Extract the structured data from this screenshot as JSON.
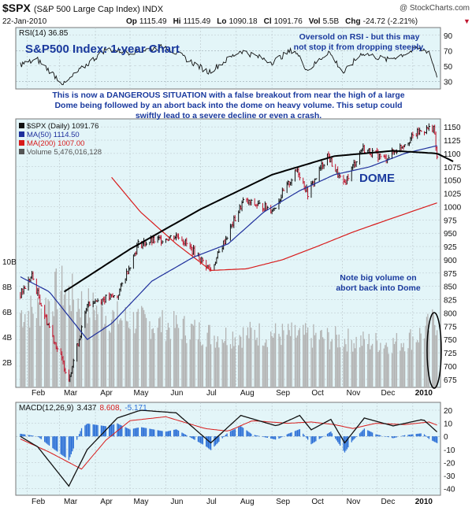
{
  "header": {
    "symbol": "$SPX",
    "name": "(S&P 500 Large Cap Index) INDX",
    "watermark": "@ StockCharts.com",
    "date": "22-Jan-2010",
    "quote": [
      {
        "label": "Op",
        "value": "1115.49"
      },
      {
        "label": "Hi",
        "value": "1115.49"
      },
      {
        "label": "Lo",
        "value": "1090.18"
      },
      {
        "label": "Cl",
        "value": "1091.76"
      },
      {
        "label": "Vol",
        "value": "5.5B"
      },
      {
        "label": "Chg",
        "value": "-24.72 (-2.21%)"
      }
    ],
    "chg_arrow": "▼"
  },
  "colors": {
    "panel_bg": "#e3f5f8",
    "grid": "#b9c4c9",
    "blue_text": "#1a3a9e",
    "price_up": "#111111",
    "price_down": "#c0162e",
    "ma50": "#1e2f9c",
    "ma200": "#d81b1b",
    "volume": "#b3b3b3",
    "histogram": "#2b6fd6"
  },
  "rsi_panel": {
    "legend": "RSI(14) 36.85",
    "annotation": "Oversold on RSI - but this may not stop it from dropping steeply.",
    "annotation_lines": [
      "Oversold on RSI - but this may",
      "not stop it from dropping steeply."
    ],
    "title": "S&P500 Index: 1-year Chart",
    "ticks": [
      "90",
      "70",
      "50",
      "30"
    ]
  },
  "commentary_lines": [
    "This is now a DANGEROUS SITUATION with a false breakout from near the high of a large",
    "Dome being followed by an abort back into the dome on heavy volume. This setup could",
    "swiftly lead to a severe decline or even a crash."
  ],
  "price_panel": {
    "legend": [
      {
        "text": "$SPX (Daily) 1091.76",
        "color": "#111111"
      },
      {
        "text": "MA(50) 1114.50",
        "color": "#1e2f9c"
      },
      {
        "text": "MA(200) 1007.00",
        "color": "#d81b1b"
      },
      {
        "text": "Volume 5,476,016,128",
        "color": "#555555"
      }
    ],
    "dome_label": "DOME",
    "volume_note_lines": [
      "Note big volume on",
      "abort back into Dome"
    ],
    "price_ticks": [
      "1150",
      "1125",
      "1100",
      "1075",
      "1050",
      "1025",
      "1000",
      "975",
      "950",
      "925",
      "900",
      "875",
      "850",
      "825",
      "800",
      "775",
      "750",
      "725",
      "700",
      "675"
    ],
    "volume_ticks": [
      "10B",
      "8B",
      "6B",
      "4B",
      "2B"
    ]
  },
  "macd_panel": {
    "legend_label": "MACD(12,26,9)",
    "macd_value": "3.437",
    "signal_value": "8.608",
    "hist_value": "-5.171",
    "ticks": [
      "20",
      "10",
      "0",
      "-10",
      "-20",
      "-30",
      "-40"
    ]
  },
  "x_axis": {
    "months": [
      "Feb",
      "Mar",
      "Apr",
      "May",
      "Jun",
      "Jul",
      "Aug",
      "Sep",
      "Oct",
      "Nov",
      "Dec",
      "2010"
    ]
  },
  "chart_data": {
    "type": "line",
    "title": "S&P500 Index: 1-year Chart",
    "x_label": "",
    "y_label": "",
    "price_range": [
      660,
      1165
    ],
    "price_points": [
      [
        "2009-01-26",
        835
      ],
      [
        "2009-02-05",
        870
      ],
      [
        "2009-02-17",
        790
      ],
      [
        "2009-03-09",
        677
      ],
      [
        "2009-03-26",
        820
      ],
      [
        "2009-04-20",
        832
      ],
      [
        "2009-05-08",
        929
      ],
      [
        "2009-06-12",
        946
      ],
      [
        "2009-07-10",
        880
      ],
      [
        "2009-08-07",
        1010
      ],
      [
        "2009-09-02",
        995
      ],
      [
        "2009-09-23",
        1070
      ],
      [
        "2009-10-02",
        1025
      ],
      [
        "2009-10-19",
        1097
      ],
      [
        "2009-11-02",
        1040
      ],
      [
        "2009-11-18",
        1110
      ],
      [
        "2009-12-08",
        1090
      ],
      [
        "2010-01-06",
        1140
      ],
      [
        "2010-01-19",
        1150
      ],
      [
        "2010-01-22",
        1091.76
      ]
    ],
    "ma50_points": [
      [
        "2009-01-26",
        868
      ],
      [
        "2009-02-20",
        840
      ],
      [
        "2009-03-25",
        750
      ],
      [
        "2009-04-15",
        780
      ],
      [
        "2009-05-20",
        860
      ],
      [
        "2009-06-25",
        905
      ],
      [
        "2009-07-25",
        930
      ],
      [
        "2009-08-25",
        990
      ],
      [
        "2009-09-25",
        1030
      ],
      [
        "2009-10-25",
        1060
      ],
      [
        "2009-11-25",
        1075
      ],
      [
        "2009-12-25",
        1100
      ],
      [
        "2010-01-22",
        1114.5
      ]
    ],
    "ma200_points": [
      [
        "2009-04-15",
        1055
      ],
      [
        "2009-05-10",
        990
      ],
      [
        "2009-06-10",
        930
      ],
      [
        "2009-07-10",
        880
      ],
      [
        "2009-08-10",
        883
      ],
      [
        "2009-09-10",
        900
      ],
      [
        "2009-10-10",
        925
      ],
      [
        "2009-11-10",
        952
      ],
      [
        "2009-12-10",
        975
      ],
      [
        "2010-01-22",
        1007
      ]
    ],
    "rsi_range": [
      20,
      100
    ],
    "rsi_points": [
      [
        "2009-01-26",
        52
      ],
      [
        "2009-02-10",
        58
      ],
      [
        "2009-03-05",
        26
      ],
      [
        "2009-03-15",
        40
      ],
      [
        "2009-04-10",
        72
      ],
      [
        "2009-05-01",
        68
      ],
      [
        "2009-06-01",
        75
      ],
      [
        "2009-07-08",
        42
      ],
      [
        "2009-08-05",
        70
      ],
      [
        "2009-09-01",
        55
      ],
      [
        "2009-09-20",
        72
      ],
      [
        "2009-10-02",
        44
      ],
      [
        "2009-10-20",
        69
      ],
      [
        "2009-11-02",
        41
      ],
      [
        "2009-11-18",
        67
      ],
      [
        "2009-12-10",
        58
      ],
      [
        "2010-01-05",
        72
      ],
      [
        "2010-01-15",
        69
      ],
      [
        "2010-01-22",
        36.85
      ]
    ],
    "volume_unit": "B",
    "volume_range": [
      0,
      12
    ],
    "volume_points": [
      [
        "2009-01-26",
        6.1
      ],
      [
        "2009-02-15",
        6.5
      ],
      [
        "2009-03-01",
        8.2
      ],
      [
        "2009-03-20",
        6.9
      ],
      [
        "2009-04-15",
        5.8
      ],
      [
        "2009-05-15",
        5.3
      ],
      [
        "2009-06-15",
        4.9
      ],
      [
        "2009-07-15",
        4.2
      ],
      [
        "2009-08-15",
        4.4
      ],
      [
        "2009-09-15",
        4.3
      ],
      [
        "2009-10-15",
        4.1
      ],
      [
        "2009-11-15",
        3.8
      ],
      [
        "2009-12-15",
        3.6
      ],
      [
        "2010-01-05",
        4.2
      ],
      [
        "2010-01-22",
        5.5
      ]
    ],
    "macd_range": [
      -45,
      26
    ],
    "macd_points": [
      [
        "2009-01-26",
        0
      ],
      [
        "2009-02-10",
        -8
      ],
      [
        "2009-03-09",
        -38
      ],
      [
        "2009-03-25",
        -10
      ],
      [
        "2009-04-20",
        14
      ],
      [
        "2009-05-10",
        20
      ],
      [
        "2009-06-10",
        18
      ],
      [
        "2009-07-10",
        -5
      ],
      [
        "2009-08-05",
        16
      ],
      [
        "2009-09-05",
        8
      ],
      [
        "2009-09-25",
        16
      ],
      [
        "2009-10-05",
        5
      ],
      [
        "2009-10-22",
        13
      ],
      [
        "2009-11-03",
        -5
      ],
      [
        "2009-11-20",
        14
      ],
      [
        "2009-12-15",
        8
      ],
      [
        "2010-01-10",
        13
      ],
      [
        "2010-01-22",
        3.437
      ]
    ],
    "signal_points": [
      [
        "2009-01-26",
        -2
      ],
      [
        "2009-02-20",
        -12
      ],
      [
        "2009-03-20",
        -25
      ],
      [
        "2009-04-10",
        -3
      ],
      [
        "2009-05-01",
        12
      ],
      [
        "2009-06-01",
        15
      ],
      [
        "2009-07-05",
        6
      ],
      [
        "2009-07-25",
        4
      ],
      [
        "2009-08-15",
        12
      ],
      [
        "2009-09-15",
        10
      ],
      [
        "2009-10-05",
        11
      ],
      [
        "2009-10-25",
        9
      ],
      [
        "2009-11-10",
        6
      ],
      [
        "2009-11-30",
        10
      ],
      [
        "2009-12-25",
        9
      ],
      [
        "2010-01-15",
        11
      ],
      [
        "2010-01-22",
        8.608
      ]
    ],
    "dome_curve": [
      [
        "2009-03-05",
        840
      ],
      [
        "2009-05-01",
        920
      ],
      [
        "2009-07-01",
        995
      ],
      [
        "2009-09-01",
        1060
      ],
      [
        "2009-10-25",
        1095
      ],
      [
        "2009-12-15",
        1105
      ],
      [
        "2010-01-22",
        1100
      ],
      [
        "2010-02-05",
        1085
      ]
    ],
    "grid": true,
    "legend_position": "top-left"
  }
}
